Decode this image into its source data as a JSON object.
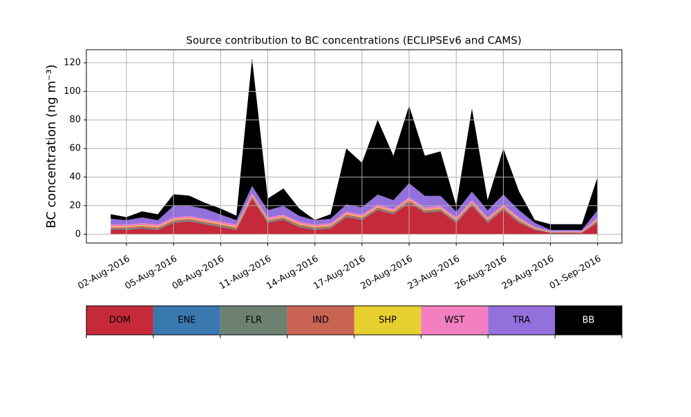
{
  "chart_data": {
    "type": "stacked-area",
    "title": "Source contribution to BC concentrations (ECLIPSEv6 and CAMS)",
    "y_label": "BC concentration (ng m⁻³)",
    "x": [
      "01-Aug-2016",
      "02-Aug-2016",
      "03-Aug-2016",
      "04-Aug-2016",
      "05-Aug-2016",
      "06-Aug-2016",
      "07-Aug-2016",
      "08-Aug-2016",
      "09-Aug-2016",
      "10-Aug-2016",
      "11-Aug-2016",
      "12-Aug-2016",
      "13-Aug-2016",
      "14-Aug-2016",
      "15-Aug-2016",
      "16-Aug-2016",
      "17-Aug-2016",
      "18-Aug-2016",
      "19-Aug-2016",
      "20-Aug-2016",
      "21-Aug-2016",
      "22-Aug-2016",
      "23-Aug-2016",
      "24-Aug-2016",
      "25-Aug-2016",
      "26-Aug-2016",
      "27-Aug-2016",
      "28-Aug-2016",
      "29-Aug-2016",
      "30-Aug-2016",
      "31-Aug-2016",
      "01-Sep-2016"
    ],
    "series": [
      {
        "name": "DOM",
        "color": "#c62a3a",
        "values": [
          3,
          3,
          4,
          3,
          8,
          9,
          7,
          5,
          3,
          25,
          8,
          10,
          5,
          3,
          4,
          12,
          10,
          17,
          14,
          22,
          15,
          16,
          8,
          20,
          8,
          17,
          8,
          3,
          1,
          1,
          1,
          8
        ]
      },
      {
        "name": "ENE",
        "color": "#3a78b0",
        "values": [
          0.3,
          0.3,
          0.3,
          0.3,
          0.3,
          0.3,
          0.3,
          0.3,
          0.3,
          0.3,
          0.3,
          0.3,
          0.3,
          0.3,
          0.3,
          0.3,
          0.3,
          0.3,
          0.3,
          0.3,
          0.3,
          0.3,
          0.3,
          0.3,
          0.3,
          0.3,
          0.3,
          0.2,
          0.1,
          0.1,
          0.1,
          0.3
        ]
      },
      {
        "name": "FLR",
        "color": "#6e8070",
        "values": [
          0.5,
          0.5,
          0.5,
          0.5,
          0.5,
          0.5,
          0.5,
          0.5,
          0.5,
          0.5,
          0.5,
          0.5,
          0.5,
          0.5,
          0.5,
          0.5,
          0.5,
          0.5,
          0.5,
          0.5,
          0.5,
          0.5,
          0.5,
          0.5,
          0.5,
          0.5,
          0.5,
          0.3,
          0.1,
          0.1,
          0.1,
          0.5
        ]
      },
      {
        "name": "IND",
        "color": "#c96455",
        "values": [
          1,
          1,
          1,
          1,
          1,
          1,
          1,
          1,
          1,
          1,
          1,
          1,
          1,
          1,
          1,
          1,
          1,
          1,
          1,
          1,
          1,
          1,
          1,
          1,
          1,
          1,
          1,
          0.5,
          0.3,
          0.3,
          0.3,
          1
        ]
      },
      {
        "name": "SHP",
        "color": "#e6d030",
        "values": [
          0.5,
          0.5,
          0.5,
          0.5,
          0.5,
          0.5,
          0.5,
          0.5,
          0.5,
          0.5,
          0.5,
          0.5,
          0.5,
          0.5,
          0.5,
          0.5,
          0.5,
          0.5,
          0.5,
          0.5,
          0.5,
          0.5,
          0.5,
          0.5,
          0.5,
          0.5,
          0.5,
          0.4,
          0.2,
          0.2,
          0.2,
          0.5
        ]
      },
      {
        "name": "WST",
        "color": "#f27fbf",
        "values": [
          1.5,
          1.5,
          1.5,
          1.5,
          1.5,
          1.5,
          1.5,
          1.5,
          1.5,
          1.5,
          1.5,
          1.5,
          1.5,
          1.5,
          1.5,
          1.5,
          1.5,
          1.5,
          1.5,
          1.5,
          1.5,
          1.5,
          1.5,
          1.5,
          1.5,
          1.5,
          1.5,
          0.6,
          0.3,
          0.3,
          0.3,
          1.5
        ]
      },
      {
        "name": "TRA",
        "color": "#9370db",
        "values": [
          4,
          3,
          4,
          3,
          8,
          7,
          7,
          5,
          3,
          5,
          5,
          6,
          4,
          3,
          3,
          5,
          5,
          7,
          6,
          10,
          8,
          7,
          4,
          6,
          5,
          7,
          5,
          3,
          1,
          1,
          1,
          5
        ]
      },
      {
        "name": "BB",
        "color": "#000000",
        "values": [
          3.2,
          2.2,
          4.2,
          4.2,
          8.2,
          7.2,
          4.2,
          4.2,
          3.2,
          89.2,
          8.2,
          12.2,
          5.2,
          0.2,
          3.2,
          39.2,
          31.2,
          52.2,
          31.2,
          54.2,
          28.2,
          31.2,
          4.2,
          58.2,
          7.2,
          32.2,
          13.2,
          2,
          4,
          4,
          4,
          23.2
        ]
      }
    ],
    "xticks": [
      "02-Aug-2016",
      "05-Aug-2016",
      "08-Aug-2016",
      "11-Aug-2016",
      "14-Aug-2016",
      "17-Aug-2016",
      "20-Aug-2016",
      "23-Aug-2016",
      "26-Aug-2016",
      "29-Aug-2016",
      "01-Sep-2016"
    ],
    "ylim": [
      -6.15,
      129.15
    ],
    "yticks": [
      0,
      20,
      40,
      60,
      80,
      100,
      120
    ],
    "grid": true
  }
}
